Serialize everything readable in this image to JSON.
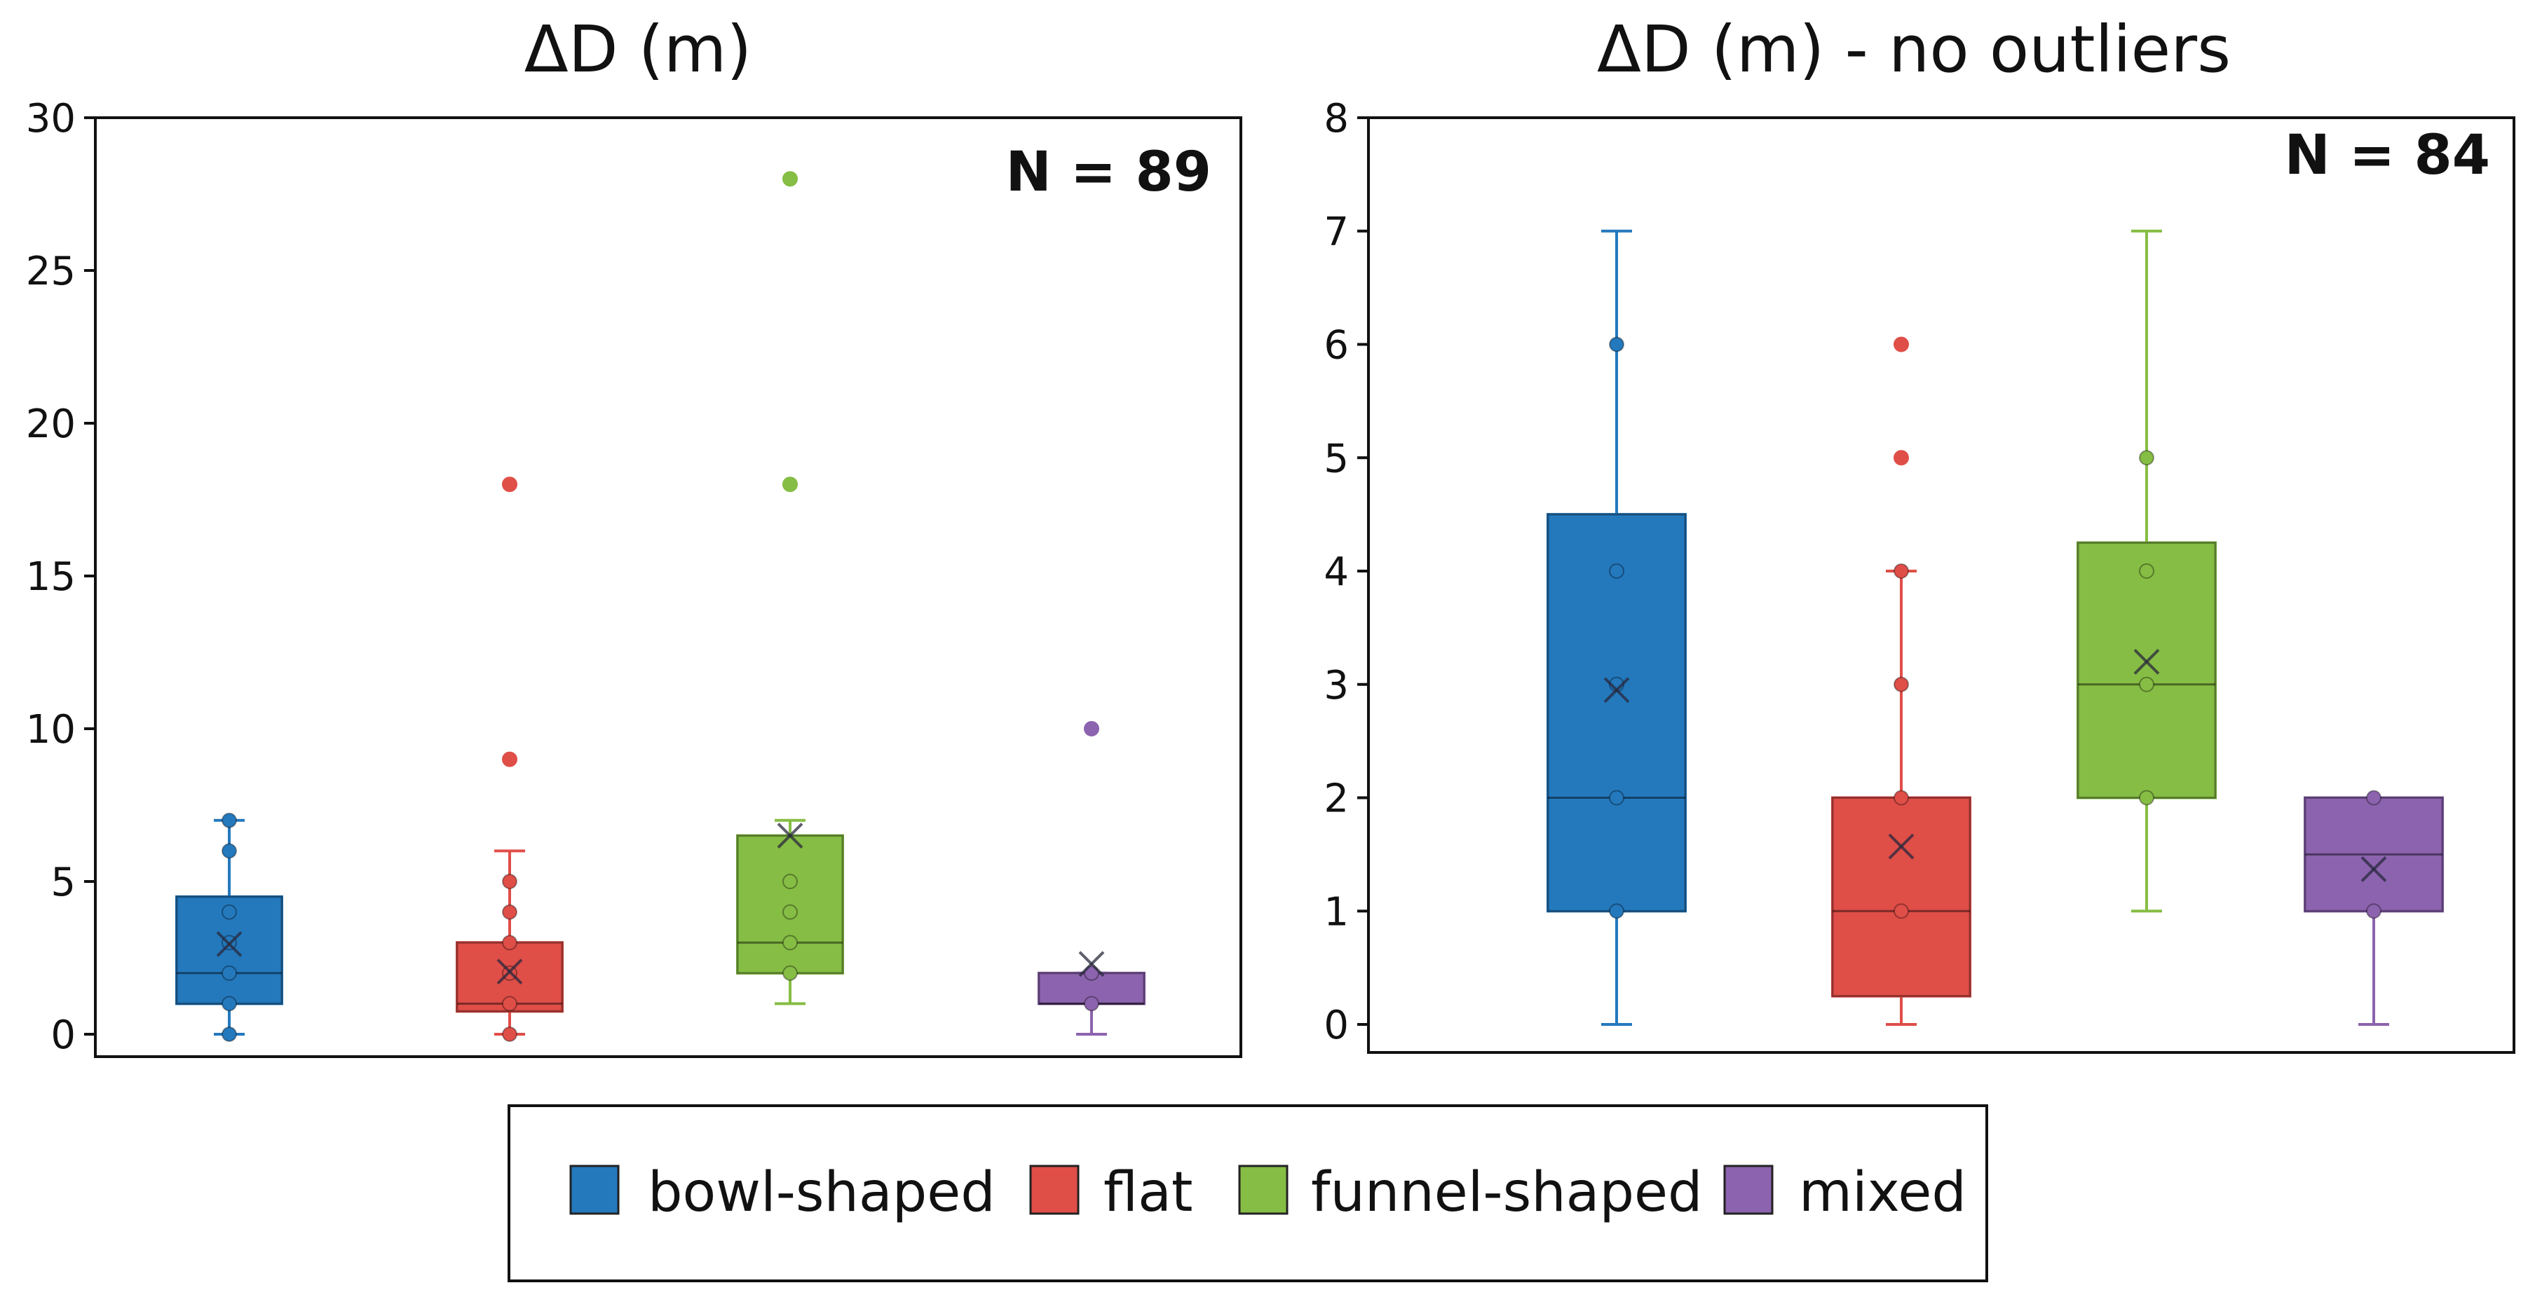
{
  "chart_data": [
    {
      "type": "box",
      "title": "ΔD (m)",
      "annotation": "N = 89",
      "xlabel": "",
      "ylabel": "",
      "ylim": [
        0,
        30
      ],
      "yticks": [
        0,
        5,
        10,
        15,
        20,
        25,
        30
      ],
      "series": [
        {
          "name": "bowl-shaped",
          "color": "#2479bd",
          "q1": 1,
          "median": 2,
          "q3": 4.5,
          "whisker_low": 0,
          "whisker_high": 7,
          "mean": 2.95,
          "points": [
            0,
            1,
            2,
            3,
            4,
            6,
            7
          ],
          "outliers": []
        },
        {
          "name": "flat",
          "color": "#e04e48",
          "q1": 0.75,
          "median": 1,
          "q3": 3,
          "whisker_low": 0,
          "whisker_high": 6,
          "mean": 2.05,
          "points": [
            0,
            1,
            2,
            3,
            4,
            5
          ],
          "outliers": [
            9,
            18
          ]
        },
        {
          "name": "funnel-shaped",
          "color": "#86bd44",
          "q1": 2,
          "median": 3,
          "q3": 6.5,
          "whisker_low": 1,
          "whisker_high": 7,
          "mean": 6.5,
          "points": [
            2,
            3,
            4,
            5
          ],
          "outliers": [
            18,
            28
          ]
        },
        {
          "name": "mixed",
          "color": "#8c63ae",
          "q1": 1,
          "median": 1,
          "q3": 2,
          "whisker_low": 0,
          "whisker_high": 2,
          "mean": 2.3,
          "points": [
            1,
            2
          ],
          "outliers": [
            10
          ]
        }
      ]
    },
    {
      "type": "box",
      "title": "ΔD (m) - no outliers",
      "annotation": "N = 84",
      "xlabel": "",
      "ylabel": "",
      "ylim": [
        0,
        8
      ],
      "yticks": [
        0,
        1,
        2,
        3,
        4,
        5,
        6,
        7,
        8
      ],
      "series": [
        {
          "name": "bowl-shaped",
          "color": "#2479bd",
          "q1": 1,
          "median": 2,
          "q3": 4.5,
          "whisker_low": 0,
          "whisker_high": 7,
          "mean": 2.95,
          "points": [
            1,
            2,
            3,
            4,
            6
          ],
          "outliers": []
        },
        {
          "name": "flat",
          "color": "#e04e48",
          "q1": 0.25,
          "median": 1,
          "q3": 2,
          "whisker_low": 0,
          "whisker_high": 4,
          "mean": 1.57,
          "points": [
            1,
            2,
            3,
            4
          ],
          "outliers": [
            5,
            6
          ]
        },
        {
          "name": "funnel-shaped",
          "color": "#86bd44",
          "q1": 2,
          "median": 3,
          "q3": 4.25,
          "whisker_low": 1,
          "whisker_high": 7,
          "mean": 3.2,
          "points": [
            2,
            3,
            4,
            5
          ],
          "outliers": []
        },
        {
          "name": "mixed",
          "color": "#8c63ae",
          "q1": 1,
          "median": 1.5,
          "q3": 2,
          "whisker_low": 0,
          "whisker_high": 2,
          "mean": 1.37,
          "points": [
            1,
            2
          ],
          "outliers": []
        }
      ]
    }
  ],
  "legend": {
    "position": "bottom-center",
    "items": [
      {
        "label": "bowl-shaped",
        "color": "#2479bd"
      },
      {
        "label": "flat",
        "color": "#e04e48"
      },
      {
        "label": "funnel-shaped",
        "color": "#86bd44"
      },
      {
        "label": "mixed",
        "color": "#8c63ae"
      }
    ]
  }
}
